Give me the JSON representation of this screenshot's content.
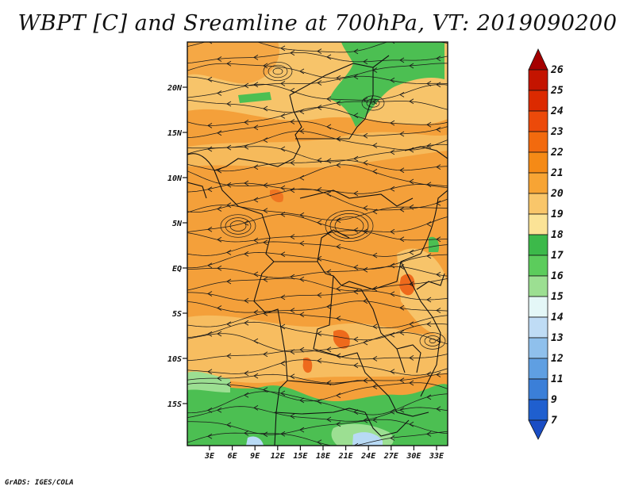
{
  "title": "WBPT [C] and Sreamline at 700hPa, VT: 2019090200",
  "credit": "GrADS: IGES/COLA",
  "lat_ticks": [
    "20N",
    "15N",
    "10N",
    "5N",
    "EQ",
    "5S",
    "10S",
    "15S"
  ],
  "lon_ticks": [
    "3E",
    "6E",
    "9E",
    "12E",
    "15E",
    "18E",
    "21E",
    "24E",
    "27E",
    "30E",
    "33E"
  ],
  "colorbar": {
    "labels": [
      "26",
      "25",
      "24",
      "23",
      "22",
      "21",
      "20",
      "19",
      "18",
      "17",
      "16",
      "15",
      "14",
      "13",
      "12",
      "11",
      "9",
      "7"
    ],
    "colors": [
      "#a50000",
      "#c41400",
      "#dc2a00",
      "#ec4a0a",
      "#f26a0e",
      "#f58a16",
      "#f7a434",
      "#f9c66a",
      "#fbe396",
      "#3cb94a",
      "#5ccc5c",
      "#9cdf92",
      "#e4f7f7",
      "#bfdcf5",
      "#8fc0ec",
      "#5f9fe2",
      "#3b7fd8",
      "#1f5fcf",
      "#1a4dc4"
    ]
  },
  "palette": {
    "warm": "#f4a03a",
    "mid": "#f7c46a",
    "hot": "#ee6a1c",
    "green": "#4cbf52",
    "lightgreen": "#9cdf92",
    "blue": "#b8daf5"
  }
}
